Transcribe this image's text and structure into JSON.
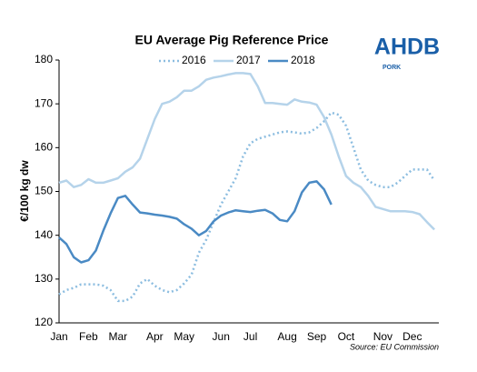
{
  "chart_data": {
    "type": "line",
    "title": "EU Average Pig Reference Price",
    "y_label": "€/100 kg dw",
    "source": "Source: EU Commission",
    "logo": {
      "name": "AHDB",
      "sub": "PORK"
    },
    "categories": [
      "Jan",
      null,
      null,
      null,
      "Feb",
      null,
      null,
      null,
      "Mar",
      null,
      null,
      null,
      null,
      "Apr",
      null,
      null,
      null,
      "May",
      null,
      null,
      null,
      null,
      "Jun",
      null,
      null,
      null,
      "Jul",
      null,
      null,
      null,
      null,
      "Aug",
      null,
      null,
      null,
      "Sep",
      null,
      null,
      null,
      "Oct",
      null,
      null,
      null,
      null,
      "Nov",
      null,
      null,
      null,
      "Dec",
      null,
      null,
      null
    ],
    "series": [
      {
        "name": "2016",
        "color": "#8cbde0",
        "dash": "dotted",
        "values": [
          126.5,
          127.5,
          128,
          128.8,
          128.8,
          128.8,
          128.5,
          127.5,
          125,
          125,
          126,
          129,
          130,
          128.5,
          127.5,
          127,
          127.5,
          129,
          131,
          136,
          139,
          143,
          147,
          150,
          153,
          158,
          161,
          162,
          162.5,
          163,
          163.5,
          163.7,
          163.5,
          163.2,
          163.5,
          164.5,
          166,
          168,
          167.5,
          165,
          160,
          155,
          152.5,
          151.5,
          151,
          151,
          152,
          153.5,
          155,
          155,
          155,
          152.5
        ]
      },
      {
        "name": "2017",
        "color": "#b5d3ea",
        "dash": "solid",
        "values": [
          152,
          152.5,
          151,
          151.5,
          152.8,
          152,
          152,
          152.5,
          153,
          154.5,
          155.5,
          157.5,
          162,
          166.5,
          170,
          170.5,
          171.5,
          173,
          173,
          174,
          175.5,
          176,
          176.3,
          176.7,
          177,
          177,
          176.8,
          174,
          170.2,
          170.2,
          170,
          169.8,
          171,
          170.5,
          170.3,
          169.8,
          167,
          163,
          158,
          153.5,
          152,
          151,
          149,
          146.5,
          146,
          145.5,
          145.5,
          145.5,
          145.3,
          144.8,
          143,
          141.3
        ]
      },
      {
        "name": "2018",
        "color": "#4a8ac4",
        "dash": "solid",
        "values": [
          139.5,
          138,
          135,
          133.8,
          134.3,
          136.5,
          141,
          145,
          148.5,
          149,
          147,
          145.2,
          145,
          144.7,
          144.5,
          144.2,
          143.8,
          142.5,
          141.5,
          140,
          141,
          143.2,
          144.5,
          145.2,
          145.7,
          145.5,
          145.3,
          145.6,
          145.8,
          145,
          143.5,
          143.2,
          145.5,
          149.8,
          152,
          152.3,
          150.5,
          147,
          null,
          null,
          null,
          null,
          null,
          null,
          null,
          null,
          null,
          null,
          null,
          null,
          null,
          null
        ]
      }
    ],
    "ylim": [
      120,
      180
    ],
    "yticks": [
      120,
      130,
      140,
      150,
      160,
      170,
      180
    ],
    "grid": false,
    "legend": "top"
  }
}
